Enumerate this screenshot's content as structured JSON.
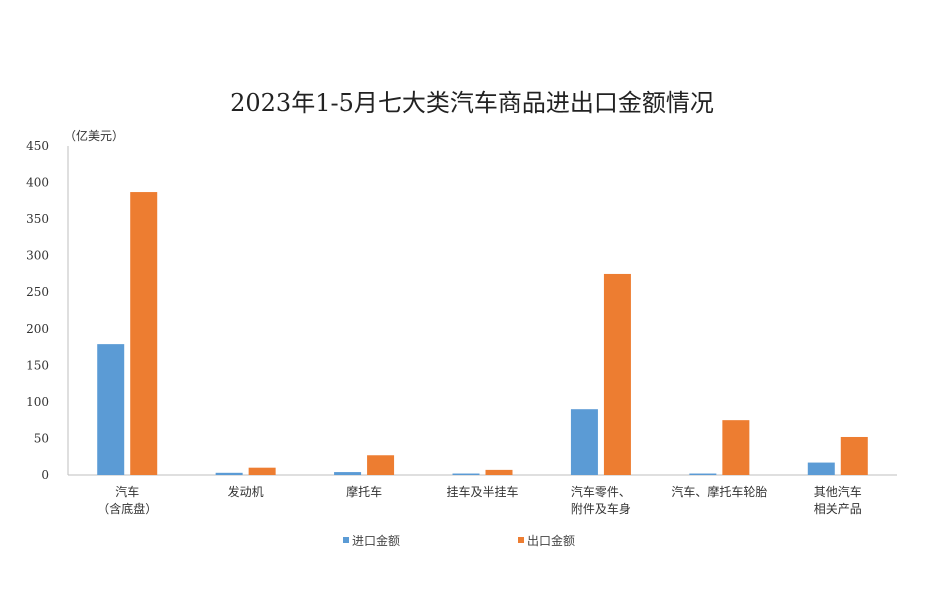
{
  "chart_data": {
    "type": "bar",
    "title": "2023年1-5月七大类汽车商品进出口金额情况",
    "ylabel": "（亿美元）",
    "xlabel": "",
    "ylim": [
      0,
      450
    ],
    "yticks": [
      0,
      50,
      100,
      150,
      200,
      250,
      300,
      350,
      400,
      450
    ],
    "categories": [
      [
        "汽车",
        "（含底盘）"
      ],
      [
        "发动机"
      ],
      [
        "摩托车"
      ],
      [
        "挂车及半挂车"
      ],
      [
        "汽车零件、",
        "附件及车身"
      ],
      [
        "汽车、摩托车轮胎"
      ],
      [
        "其他汽车",
        "相关产品"
      ]
    ],
    "series": [
      {
        "name": "进口金额",
        "color": "#5B9BD5",
        "values": [
          179,
          3,
          4,
          2,
          90,
          2,
          17
        ]
      },
      {
        "name": "出口金额",
        "color": "#ED7D31",
        "values": [
          387,
          10,
          27,
          7,
          275,
          75,
          52
        ]
      }
    ],
    "grid": false,
    "legend_position": "bottom"
  }
}
